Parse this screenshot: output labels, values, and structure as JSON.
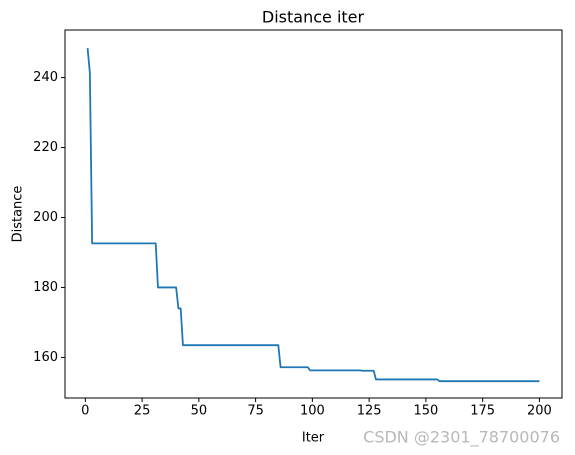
{
  "chart_data": {
    "type": "line",
    "title": "Distance iter",
    "x_label": "Iter",
    "y_label": "Distance",
    "x": [
      1,
      2,
      3,
      31,
      32,
      40,
      41,
      42,
      43,
      85,
      86,
      98,
      99,
      121,
      122,
      127,
      128,
      155,
      156,
      200
    ],
    "series": [
      {
        "color": "#1f77b4",
        "values": [
          248.4,
          241.4,
          192.6,
          192.6,
          180.0,
          180.0,
          174.0,
          174.0,
          163.5,
          163.5,
          157.2,
          157.2,
          156.3,
          156.3,
          156.2,
          156.2,
          153.7,
          153.7,
          153.2,
          153.2
        ]
      }
    ],
    "xlim": [
      -8.95,
      209.95
    ],
    "ylim": [
      148.4,
      253.6
    ],
    "xticks": [
      0,
      25,
      50,
      75,
      100,
      125,
      150,
      175,
      200
    ],
    "yticks": [
      160,
      180,
      200,
      220,
      240
    ],
    "grid": false,
    "watermark": "CSDN @2301_78700076"
  }
}
